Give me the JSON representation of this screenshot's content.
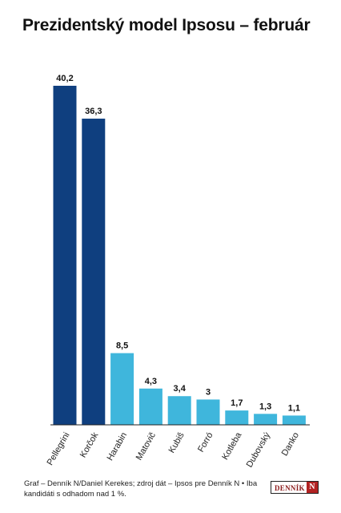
{
  "chart_data": {
    "type": "bar",
    "title": "Prezidentský model Ipsosu – február",
    "xlabel": "",
    "ylabel": "",
    "categories": [
      "Pellegrini",
      "Korčok",
      "Harabin",
      "Matovič",
      "Kubiš",
      "Forró",
      "Kotleba",
      "Dubovský",
      "Danko"
    ],
    "values": [
      40.2,
      36.3,
      8.5,
      4.3,
      3.4,
      3,
      1.7,
      1.3,
      1.1
    ],
    "value_labels": [
      "40,2",
      "36,3",
      "8,5",
      "4,3",
      "3,4",
      "3",
      "1,7",
      "1,3",
      "1,1"
    ],
    "bar_colors": [
      "#0f3f7f",
      "#0f3f7f",
      "#3fb6dc",
      "#3fb6dc",
      "#3fb6dc",
      "#3fb6dc",
      "#3fb6dc",
      "#3fb6dc",
      "#3fb6dc"
    ],
    "ylim": [
      0,
      40.2
    ],
    "grid": false,
    "legend": "none"
  },
  "footer": {
    "source": "Graf – Denník N/Daniel Kerekes; zdroj dát – Ipsos pre Denník N • Iba kandidáti s odhadom nad 1 %."
  },
  "logo": {
    "text": "DENNÍK",
    "mark": "N"
  }
}
